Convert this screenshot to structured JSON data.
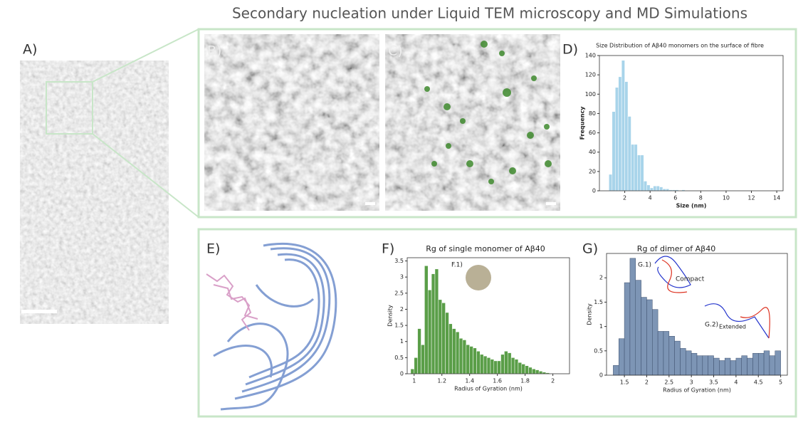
{
  "title": "Secondary nucleation under Liquid TEM microscopy and MD Simulations",
  "panels": [
    "A)",
    "B)",
    "C)",
    "D)",
    "E)",
    "F)",
    "G)"
  ],
  "chart_data": [
    {
      "type": "histogram",
      "title": "Size Distribution of Aβ40 monomers on the surface of fibre",
      "x_label": "Size (nm)",
      "y_label": "Frequency",
      "color": "#a8d4ea",
      "bins": [
        0.75,
        1,
        1.25,
        1.5,
        1.75,
        2,
        2.25,
        2.5,
        2.75,
        3,
        3.25,
        3.5,
        3.75,
        4,
        4.25,
        4.5,
        4.75,
        5,
        5.25,
        5.5,
        5.75,
        6,
        6.25,
        6.5,
        6.75
      ],
      "values": [
        17,
        82,
        107,
        118,
        135,
        113,
        77,
        48,
        48,
        37,
        37,
        10,
        6,
        3,
        5,
        5,
        4,
        2,
        2,
        1,
        1,
        1,
        0,
        1
      ],
      "xlim": [
        0,
        14.5
      ],
      "xticks": [
        2,
        4,
        6,
        8,
        10,
        12,
        14
      ],
      "ylim": [
        0,
        140
      ],
      "yticks": [
        0,
        20,
        40,
        60,
        80,
        100,
        120,
        140
      ]
    },
    {
      "type": "histogram",
      "title": "Rg of single monomer of Aβ40",
      "x_label": "Radius of Gyration (nm)",
      "y_label": "Density",
      "color": "#5a9e48",
      "annotations": [
        "F.1)"
      ],
      "bins": [
        0.975,
        1,
        1.025,
        1.05,
        1.075,
        1.1,
        1.125,
        1.15,
        1.175,
        1.2,
        1.225,
        1.25,
        1.275,
        1.3,
        1.325,
        1.35,
        1.375,
        1.4,
        1.425,
        1.45,
        1.475,
        1.5,
        1.525,
        1.55,
        1.575,
        1.6,
        1.625,
        1.65,
        1.675,
        1.7,
        1.725,
        1.75,
        1.775,
        1.8,
        1.825,
        1.85,
        1.875,
        1.9,
        1.925,
        1.95,
        1.975
      ],
      "values": [
        0.15,
        0.5,
        1.4,
        0.9,
        3.35,
        2.6,
        3.1,
        3.25,
        2.3,
        2.2,
        1.9,
        1.55,
        1.4,
        1.3,
        1.1,
        1.05,
        0.9,
        0.85,
        0.8,
        0.7,
        0.6,
        0.55,
        0.5,
        0.45,
        0.4,
        0.4,
        0.6,
        0.7,
        0.65,
        0.5,
        0.45,
        0.35,
        0.3,
        0.25,
        0.2,
        0.15,
        0.12,
        0.08,
        0.05,
        0.03
      ],
      "xlim": [
        0.95,
        2.12
      ],
      "xticks": [
        1,
        1.2,
        1.4,
        1.6,
        1.8,
        2
      ],
      "ylim": [
        0,
        3.6
      ],
      "yticks": [
        0,
        0.5,
        1,
        1.5,
        2,
        2.5,
        3,
        3.5
      ]
    },
    {
      "type": "histogram",
      "title": "Rg of dimer of Aβ40",
      "x_label": "Radius of Gyration (nm)",
      "y_label": "Density",
      "color": "#7d95b5",
      "annotations": [
        "G.1)",
        "Compact",
        "G.2)",
        "Extended"
      ],
      "bins": [
        1.25,
        1.375,
        1.5,
        1.625,
        1.75,
        1.875,
        2,
        2.125,
        2.25,
        2.375,
        2.5,
        2.625,
        2.75,
        2.875,
        3,
        3.125,
        3.25,
        3.375,
        3.5,
        3.625,
        3.75,
        3.875,
        4,
        4.125,
        4.25,
        4.375,
        4.5,
        4.625,
        4.75,
        4.875,
        5
      ],
      "values": [
        0.2,
        0.75,
        1.9,
        2.4,
        1.95,
        1.6,
        1.55,
        1.35,
        0.9,
        0.9,
        0.8,
        0.7,
        0.55,
        0.5,
        0.45,
        0.4,
        0.4,
        0.4,
        0.35,
        0.3,
        0.35,
        0.3,
        0.35,
        0.4,
        0.35,
        0.45,
        0.45,
        0.5,
        0.4,
        0.5
      ],
      "xlim": [
        1.1,
        5.15
      ],
      "xticks": [
        1.5,
        2,
        2.5,
        3,
        3.5,
        4,
        4.5,
        5
      ],
      "ylim": [
        0,
        2.5
      ],
      "yticks": [
        0,
        0.5,
        1,
        1.5,
        2
      ]
    }
  ]
}
